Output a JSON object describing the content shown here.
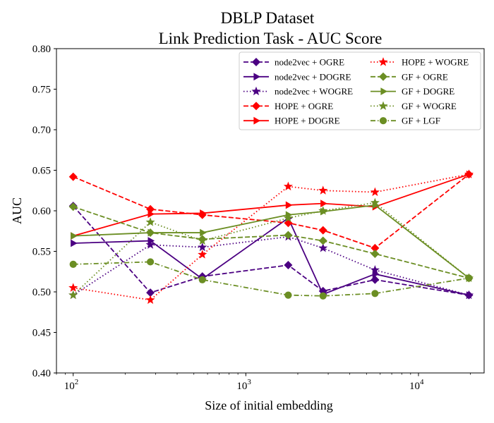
{
  "chart_data": {
    "type": "line",
    "title": "DBLP Dataset",
    "subtitle": "Link Prediction Task - AUC Score",
    "xlabel": "Size of initial embedding",
    "ylabel": "AUC",
    "xscale": "log",
    "xlim": [
      80,
      24000
    ],
    "ylim": [
      0.4,
      0.8
    ],
    "yticks": [
      "0.40",
      "0.45",
      "0.50",
      "0.55",
      "0.60",
      "0.65",
      "0.70",
      "0.75",
      "0.80"
    ],
    "xticks": [
      {
        "base": "10",
        "exp": "2"
      },
      {
        "base": "10",
        "exp": "3"
      },
      {
        "base": "10",
        "exp": "4"
      }
    ],
    "grid": false,
    "legend_position": "top-right",
    "x": [
      100,
      280,
      560,
      1760,
      2800,
      5600,
      19600
    ],
    "series": [
      {
        "name": "node2vec + OGRE",
        "color": "#4b0082",
        "dash": "dashed",
        "marker": "diamond",
        "values": [
          0.606,
          0.499,
          0.519,
          0.533,
          0.501,
          0.515,
          0.496
        ]
      },
      {
        "name": "node2vec + DOGRE",
        "color": "#4b0082",
        "dash": "solid",
        "marker": "triangle-right",
        "values": [
          0.56,
          0.563,
          0.516,
          0.591,
          0.497,
          0.522,
          0.496
        ]
      },
      {
        "name": "node2vec + WOGRE",
        "color": "#4b0082",
        "dash": "dotted",
        "marker": "star",
        "values": [
          0.496,
          0.558,
          0.555,
          0.568,
          0.554,
          0.527,
          0.496
        ]
      },
      {
        "name": "HOPE + OGRE",
        "color": "#ff0000",
        "dash": "dashed",
        "marker": "diamond",
        "values": [
          0.642,
          0.602,
          0.595,
          0.585,
          0.576,
          0.554,
          0.645
        ]
      },
      {
        "name": "HOPE + DOGRE",
        "color": "#ff0000",
        "dash": "solid",
        "marker": "triangle-right",
        "values": [
          0.569,
          0.596,
          0.597,
          0.607,
          0.609,
          0.605,
          0.645
        ]
      },
      {
        "name": "HOPE + WOGRE",
        "color": "#ff0000",
        "dash": "dotted",
        "marker": "star",
        "values": [
          0.505,
          0.49,
          0.546,
          0.63,
          0.625,
          0.623,
          0.645
        ]
      },
      {
        "name": "GF + OGRE",
        "color": "#6b8e23",
        "dash": "dashed",
        "marker": "diamond",
        "values": [
          0.605,
          0.573,
          0.565,
          0.57,
          0.563,
          0.547,
          0.517
        ]
      },
      {
        "name": "GF + DOGRE",
        "color": "#6b8e23",
        "dash": "solid",
        "marker": "triangle-right",
        "values": [
          0.569,
          0.573,
          0.573,
          0.595,
          0.599,
          0.607,
          0.517
        ]
      },
      {
        "name": "GF + WOGRE",
        "color": "#6b8e23",
        "dash": "dotted",
        "marker": "star",
        "values": [
          0.496,
          0.586,
          0.563,
          0.591,
          0.6,
          0.61,
          0.517
        ]
      },
      {
        "name": "GF + LGF",
        "color": "#6b8e23",
        "dash": "dashdot",
        "marker": "circle",
        "values": [
          0.534,
          0.537,
          0.515,
          0.496,
          0.495,
          0.498,
          0.517
        ]
      }
    ]
  }
}
